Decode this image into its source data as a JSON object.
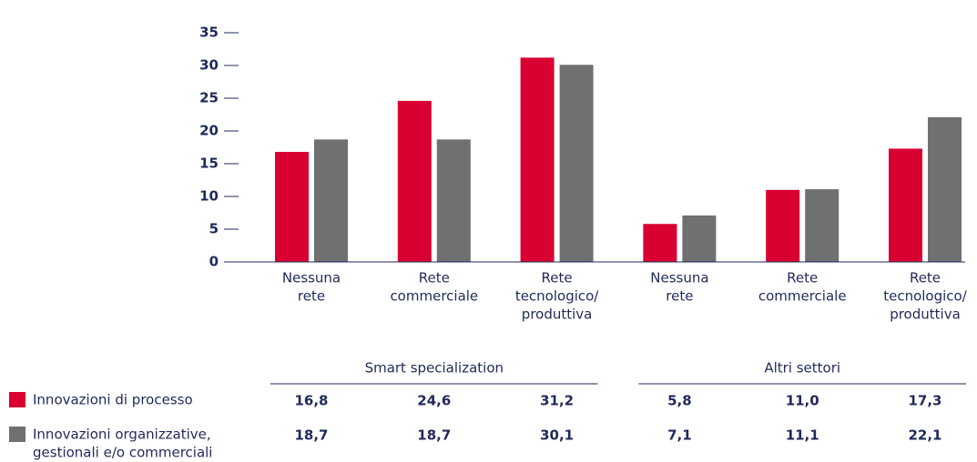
{
  "chart_data": {
    "type": "bar",
    "categories": [
      [
        "Nessuna",
        "rete"
      ],
      [
        "Rete",
        "commerciale"
      ],
      [
        "Rete",
        "tecnologico/",
        "produttiva"
      ],
      [
        "Nessuna",
        "rete"
      ],
      [
        "Rete",
        "commerciale"
      ],
      [
        "Rete",
        "tecnologico/",
        "produttiva"
      ]
    ],
    "groups": [
      "Smart specialization",
      "Altri settori"
    ],
    "series": [
      {
        "name": [
          "Innovazioni di processo"
        ],
        "color": "#d90032",
        "values": [
          16.8,
          24.6,
          31.2,
          5.8,
          11.0,
          17.3
        ],
        "value_labels": [
          "16,8",
          "24,6",
          "31,2",
          "5,8",
          "11,0",
          "17,3"
        ]
      },
      {
        "name": [
          "Innovazioni organizzative,",
          "gestionali e/o commerciali"
        ],
        "color": "#707070",
        "values": [
          18.7,
          18.7,
          30.1,
          7.1,
          11.1,
          22.1
        ],
        "value_labels": [
          "18,7",
          "18,7",
          "30,1",
          "7,1",
          "11,1",
          "22,1"
        ]
      }
    ],
    "ylim": [
      0,
      35
    ],
    "yticks": [
      0,
      5,
      10,
      15,
      20,
      25,
      30,
      35
    ]
  }
}
